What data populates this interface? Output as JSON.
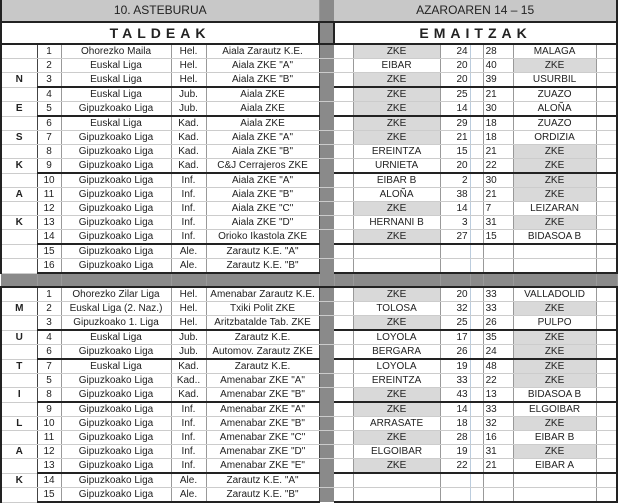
{
  "header": {
    "week": "10. ASTEBURUA",
    "dates": "AZAROAREN 14 – 15",
    "teams_title": "TALDEAK",
    "results_title": "EMAITZAK"
  },
  "colors": {
    "highlight": "#d9d9d9",
    "divider": "#8a8a8a",
    "header": "#c8c8c8"
  },
  "sections": [
    {
      "letters": {
        "3": "N",
        "5": "E",
        "7": "S",
        "9": "K",
        "11": "A",
        "13": "K"
      },
      "group_ends": [
        3,
        5,
        9,
        14,
        16
      ],
      "rows": [
        {
          "n": "1",
          "league": "Ohorezko Maila",
          "cat": "Hel.",
          "team": "Aiala Zarautz K.E.",
          "home": "ZKE",
          "hs": "24",
          "as": "28",
          "away": "MALAGA",
          "zke": "home"
        },
        {
          "n": "2",
          "league": "Euskal Liga",
          "cat": "Hel.",
          "team": "Aiala ZKE \"A\"",
          "home": "EIBAR",
          "hs": "20",
          "as": "40",
          "away": "ZKE",
          "zke": "away"
        },
        {
          "n": "3",
          "league": "Euskal Liga",
          "cat": "Hel.",
          "team": "Aiala ZKE \"B\"",
          "home": "ZKE",
          "hs": "20",
          "as": "39",
          "away": "USURBIL",
          "zke": "home"
        },
        {
          "n": "4",
          "league": "Euskal Liga",
          "cat": "Jub.",
          "team": "Aiala ZKE",
          "home": "ZKE",
          "hs": "25",
          "as": "21",
          "away": "ZUAZO",
          "zke": "home"
        },
        {
          "n": "5",
          "league": "Gipuzkoako Liga",
          "cat": "Jub.",
          "team": "Aiala ZKE",
          "home": "ZKE",
          "hs": "14",
          "as": "30",
          "away": "ALOÑA",
          "zke": "home"
        },
        {
          "n": "6",
          "league": "Euskal Liga",
          "cat": "Kad.",
          "team": "Aiala ZKE",
          "home": "ZKE",
          "hs": "29",
          "as": "18",
          "away": "ZUAZO",
          "zke": "home"
        },
        {
          "n": "7",
          "league": "Gipuzkoako Liga",
          "cat": "Kad.",
          "team": "Aiala ZKE \"A\"",
          "home": "ZKE",
          "hs": "21",
          "as": "18",
          "away": "ORDIZIA",
          "zke": "home"
        },
        {
          "n": "8",
          "league": "Gipuzkoako Liga",
          "cat": "Kad.",
          "team": "Aiala ZKE \"B\"",
          "home": "EREINTZA",
          "hs": "15",
          "as": "21",
          "away": "ZKE",
          "zke": "away"
        },
        {
          "n": "9",
          "league": "Gipuzkoako Liga",
          "cat": "Kad.",
          "team": "C&J Cerrajeros ZKE",
          "home": "URNIETA",
          "hs": "20",
          "as": "22",
          "away": "ZKE",
          "zke": "away"
        },
        {
          "n": "10",
          "league": "Gipuzkoako Liga",
          "cat": "Inf.",
          "team": "Aiala ZKE \"A\"",
          "home": "EIBAR B",
          "hs": "2",
          "as": "30",
          "away": "ZKE",
          "zke": "away"
        },
        {
          "n": "11",
          "league": "Gipuzkoako Liga",
          "cat": "Inf.",
          "team": "Aiala ZKE \"B\"",
          "home": "ALOÑA",
          "hs": "38",
          "as": "21",
          "away": "ZKE",
          "zke": "away"
        },
        {
          "n": "12",
          "league": "Gipuzkoako Liga",
          "cat": "Inf.",
          "team": "Aiala ZKE \"C\"",
          "home": "ZKE",
          "hs": "14",
          "as": "7",
          "away": "LEIZARAN",
          "zke": "home"
        },
        {
          "n": "13",
          "league": "Gipuzkoako Liga",
          "cat": "Inf.",
          "team": "Aiala ZKE \"D\"",
          "home": "HERNANI B",
          "hs": "3",
          "as": "31",
          "away": "ZKE",
          "zke": "away"
        },
        {
          "n": "14",
          "league": "Gipuzkoako Liga",
          "cat": "Inf.",
          "team": "Orioko Ikastola ZKE",
          "home": "ZKE",
          "hs": "27",
          "as": "15",
          "away": "BIDASOA B",
          "zke": "home"
        },
        {
          "n": "15",
          "league": "Gipuzkoako Liga",
          "cat": "Ale.",
          "team": "Zarautz K.E. \"A\"",
          "home": "",
          "hs": "",
          "as": "",
          "away": "",
          "zke": ""
        },
        {
          "n": "16",
          "league": "Gipuzkoako Liga",
          "cat": "Ale.",
          "team": "Zarautz K.E. \"B\"",
          "home": "",
          "hs": "",
          "as": "",
          "away": "",
          "zke": ""
        }
      ]
    },
    {
      "letters": {
        "2": "M",
        "4": "U",
        "6": "T",
        "8": "I",
        "10": "L",
        "12": "A",
        "14": "K"
      },
      "group_ends": [
        3,
        5,
        8,
        13,
        15
      ],
      "rows": [
        {
          "n": "1",
          "league": "Ohorezko Zilar Liga",
          "cat": "Hel.",
          "team": "Amenabar Zarautz K.E.",
          "home": "ZKE",
          "hs": "20",
          "as": "33",
          "away": "VALLADOLID",
          "zke": "home"
        },
        {
          "n": "2",
          "league": "Euskal Liga (2. Naz.)",
          "cat": "Hel.",
          "team": "Txiki Polit ZKE",
          "home": "TOLOSA",
          "hs": "32",
          "as": "33",
          "away": "ZKE",
          "zke": "away"
        },
        {
          "n": "3",
          "league": "Gipuzkoako 1. Liga",
          "cat": "Hel.",
          "team": "Aritzbatalde Tab. ZKE",
          "home": "ZKE",
          "hs": "25",
          "as": "26",
          "away": "PULPO",
          "zke": "home"
        },
        {
          "n": "4",
          "league": "Euskal Liga",
          "cat": "Jub.",
          "team": "Zarautz K.E.",
          "home": "LOYOLA",
          "hs": "17",
          "as": "35",
          "away": "ZKE",
          "zke": "away"
        },
        {
          "n": "6",
          "league": "Gipuzkoako Liga",
          "cat": "Jub.",
          "team": "Automov. Zarautz ZKE",
          "home": "BERGARA",
          "hs": "26",
          "as": "24",
          "away": "ZKE",
          "zke": "away"
        },
        {
          "n": "7",
          "league": "Euskal Liga",
          "cat": "Kad.",
          "team": "Zarautz K.E.",
          "home": "LOYOLA",
          "hs": "19",
          "as": "48",
          "away": "ZKE",
          "zke": "away"
        },
        {
          "n": "5",
          "league": "Gipuzkoako Liga",
          "cat": "Kad..",
          "team": "Amenabar ZKE \"A\"",
          "home": "EREINTZA",
          "hs": "33",
          "as": "22",
          "away": "ZKE",
          "zke": "away"
        },
        {
          "n": "8",
          "league": "Gipuzkoako Liga",
          "cat": "Kad.",
          "team": "Amenabar ZKE \"B\"",
          "home": "ZKE",
          "hs": "43",
          "as": "13",
          "away": "BIDASOA B",
          "zke": "home"
        },
        {
          "n": "9",
          "league": "Gipuzkoako Liga",
          "cat": "Inf.",
          "team": "Amenabar ZKE \"A\"",
          "home": "ZKE",
          "hs": "14",
          "as": "33",
          "away": "ELGOIBAR",
          "zke": "home"
        },
        {
          "n": "10",
          "league": "Gipuzkoako Liga",
          "cat": "Inf.",
          "team": "Amenabar ZKE \"B\"",
          "home": "ARRASATE",
          "hs": "18",
          "as": "32",
          "away": "ZKE",
          "zke": "away"
        },
        {
          "n": "11",
          "league": "Gipuzkoako Liga",
          "cat": "Inf.",
          "team": "Amenabar ZKE \"C\"",
          "home": "ZKE",
          "hs": "28",
          "as": "16",
          "away": "EIBAR B",
          "zke": "home"
        },
        {
          "n": "12",
          "league": "Gipuzkoako Liga",
          "cat": "Inf.",
          "team": "Amenabar ZKE \"D\"",
          "home": "ELGOIBAR",
          "hs": "19",
          "as": "31",
          "away": "ZKE",
          "zke": "away"
        },
        {
          "n": "13",
          "league": "Gipuzkoako Liga",
          "cat": "Inf.",
          "team": "Amenabar ZKE \"E\"",
          "home": "ZKE",
          "hs": "22",
          "as": "21",
          "away": "EIBAR A",
          "zke": "home"
        },
        {
          "n": "14",
          "league": "Gipuzkoako Liga",
          "cat": "Ale.",
          "team": "Zarautz K.E. \"A\"",
          "home": "",
          "hs": "",
          "as": "",
          "away": "",
          "zke": ""
        },
        {
          "n": "15",
          "league": "Gipuzkoako Liga",
          "cat": "Ale.",
          "team": "Zarautz K.E. \"B\"",
          "home": "",
          "hs": "",
          "as": "",
          "away": "",
          "zke": ""
        }
      ]
    }
  ]
}
